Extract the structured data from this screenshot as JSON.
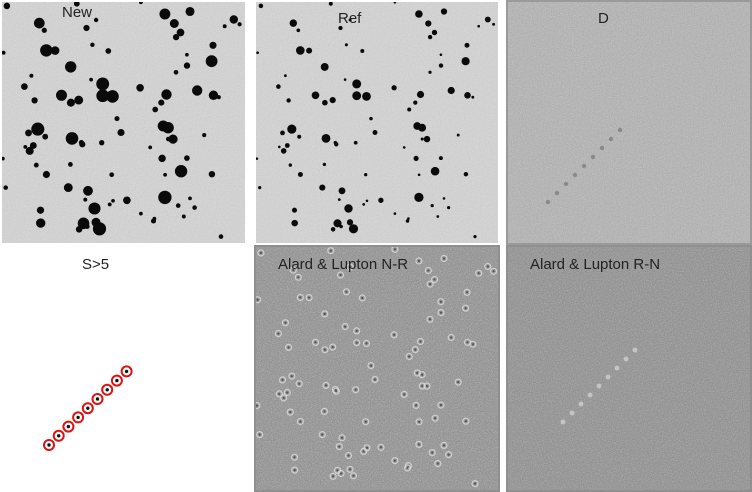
{
  "panels": {
    "new": {
      "label": "New"
    },
    "ref": {
      "label": "Ref"
    },
    "d": {
      "label": "D"
    },
    "s5": {
      "label": "S>5"
    },
    "alnr": {
      "label": "Alard & Lupton N-R"
    },
    "alrn": {
      "label": "Alard & Lupton R-N"
    }
  },
  "colors": {
    "star_field_bg": "#d6d6d6",
    "star": "#0a0a0a",
    "diff_bg": "#b4b4b4",
    "alard_bg": "#8c8c8c",
    "detection_marker": "#e01010"
  },
  "detections_count": 9
}
